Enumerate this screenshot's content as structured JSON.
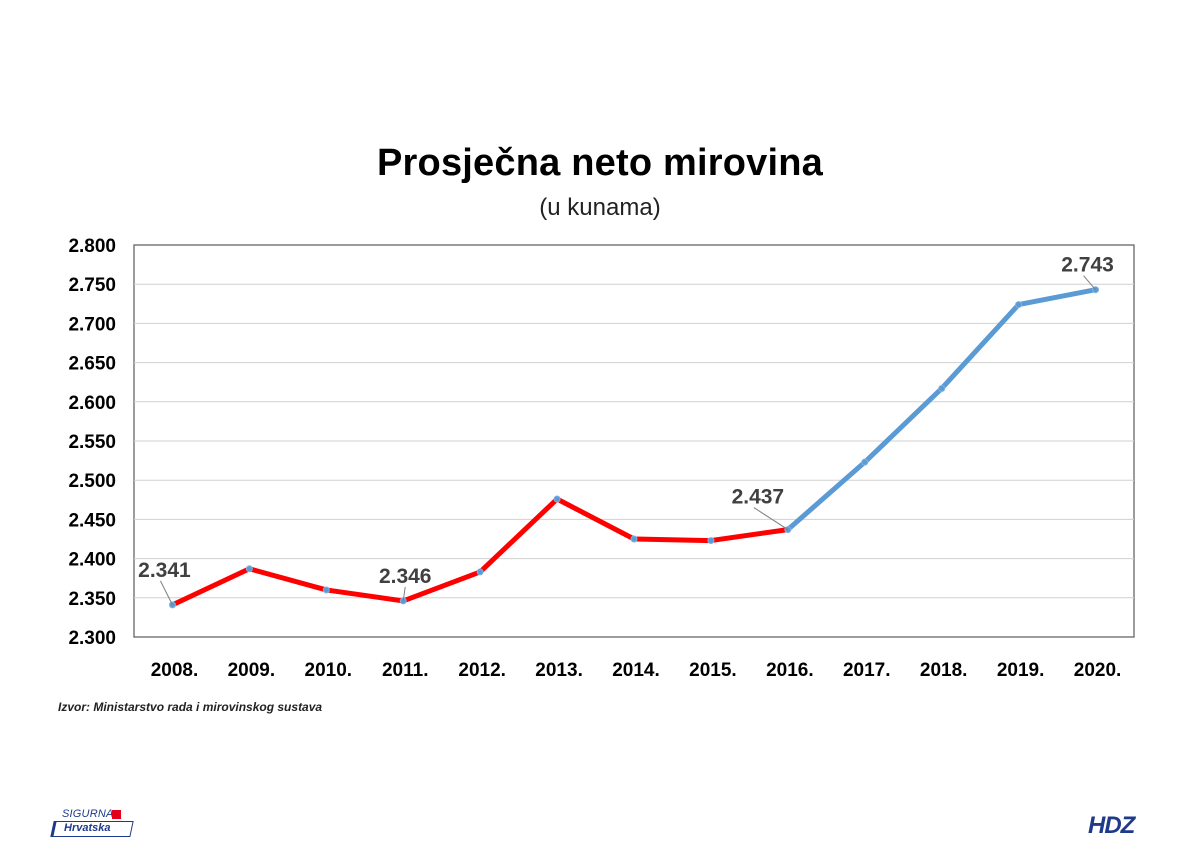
{
  "chart_data": {
    "type": "line",
    "title": "Prosječna neto mirovina",
    "subtitle": "(u kunama)",
    "categories": [
      "2008.",
      "2009.",
      "2010.",
      "2011.",
      "2012.",
      "2013.",
      "2014.",
      "2015.",
      "2016.",
      "2017.",
      "2018.",
      "2019.",
      "2020."
    ],
    "values": [
      2341,
      2387,
      2360,
      2346,
      2383,
      2476,
      2425,
      2423,
      2437,
      2523,
      2617,
      2724,
      2743
    ],
    "segments": [
      {
        "from_index": 0,
        "to_index": 8,
        "color": "#ff0000"
      },
      {
        "from_index": 8,
        "to_index": 12,
        "color": "#5b9bd5"
      }
    ],
    "point_color": "#5b9bd5",
    "data_labels": [
      {
        "index": 0,
        "text": "2.341"
      },
      {
        "index": 3,
        "text": "2.346"
      },
      {
        "index": 8,
        "text": "2.437"
      },
      {
        "index": 12,
        "text": "2.743"
      }
    ],
    "ylim": [
      2300,
      2800
    ],
    "ytick_step": 50,
    "ytick_labels": [
      "2.300",
      "2.350",
      "2.400",
      "2.450",
      "2.500",
      "2.550",
      "2.600",
      "2.650",
      "2.700",
      "2.750",
      "2.800"
    ],
    "grid": true,
    "legend": "none"
  },
  "source_text": "Izvor: Ministarstvo rada i mirovinskog sustava",
  "logo_left": {
    "line1": "SIGURNA",
    "line2": "Hrvatska"
  },
  "logo_right": "HDZ"
}
